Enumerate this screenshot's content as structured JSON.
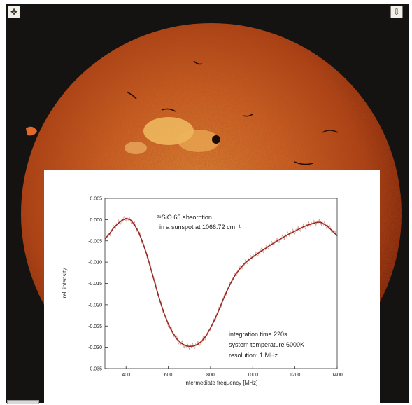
{
  "icons": {
    "expand": "expand-arrows-icon",
    "download": "download-icon"
  },
  "colors": {
    "sun_core": "#d9691f",
    "sun_edge": "#8c2406",
    "background": "#151312",
    "plot_line": "#8a1f1a"
  },
  "chart_data": {
    "type": "line",
    "title": "",
    "annotation_line1": "²⁸SiO 65 absorption",
    "annotation_line2": "in a sunspot at 1066.72 cm⁻¹",
    "notes": [
      "integration time 220s",
      "system temperature 6000K",
      "resolution: 1 MHz"
    ],
    "xlabel": "intermediate frequency [MHz]",
    "ylabel": "rel. intensity",
    "xlim": [
      300,
      1400
    ],
    "ylim": [
      -0.035,
      0.005
    ],
    "xticks": [
      400,
      600,
      800,
      1000,
      1200,
      1400
    ],
    "xtick_labels": [
      "400",
      "600",
      "800",
      "1000",
      "1200",
      "1400"
    ],
    "yticks": [
      0.005,
      0.0,
      -0.005,
      -0.01,
      -0.015,
      -0.02,
      -0.025,
      -0.03,
      -0.035
    ],
    "ytick_labels": [
      "0.005",
      "0.000",
      "-0.005",
      "-0.010",
      "-0.015",
      "-0.020",
      "-0.025",
      "-0.030",
      "-0.035"
    ],
    "grid": false,
    "series": [
      {
        "x": [
          300,
          320,
          340,
          360,
          380,
          400,
          420,
          440,
          460,
          480,
          500,
          520,
          540,
          560,
          580,
          600,
          620,
          640,
          660,
          680,
          700,
          720,
          740,
          760,
          780,
          800,
          820,
          840,
          860,
          880,
          900,
          920,
          940,
          960,
          980,
          1000,
          1020,
          1040,
          1060,
          1080,
          1100,
          1120,
          1140,
          1160,
          1180,
          1200,
          1220,
          1240,
          1260,
          1280,
          1300,
          1320,
          1340,
          1360,
          1380,
          1400
        ],
        "y": [
          -0.0045,
          -0.0035,
          -0.002,
          -0.001,
          -0.0002,
          0.0003,
          0.0,
          -0.0012,
          -0.003,
          -0.0055,
          -0.0085,
          -0.012,
          -0.0155,
          -0.019,
          -0.022,
          -0.0245,
          -0.0265,
          -0.028,
          -0.029,
          -0.0296,
          -0.0298,
          -0.0297,
          -0.0293,
          -0.0285,
          -0.0272,
          -0.0255,
          -0.0235,
          -0.0212,
          -0.0188,
          -0.0165,
          -0.0145,
          -0.0128,
          -0.0115,
          -0.0104,
          -0.0095,
          -0.0088,
          -0.0081,
          -0.0074,
          -0.0068,
          -0.0061,
          -0.0055,
          -0.0049,
          -0.0043,
          -0.0037,
          -0.0032,
          -0.0027,
          -0.0022,
          -0.0017,
          -0.0013,
          -0.001,
          -0.0007,
          -0.0006,
          -0.0011,
          -0.0018,
          -0.0028,
          -0.0038
        ]
      }
    ]
  }
}
